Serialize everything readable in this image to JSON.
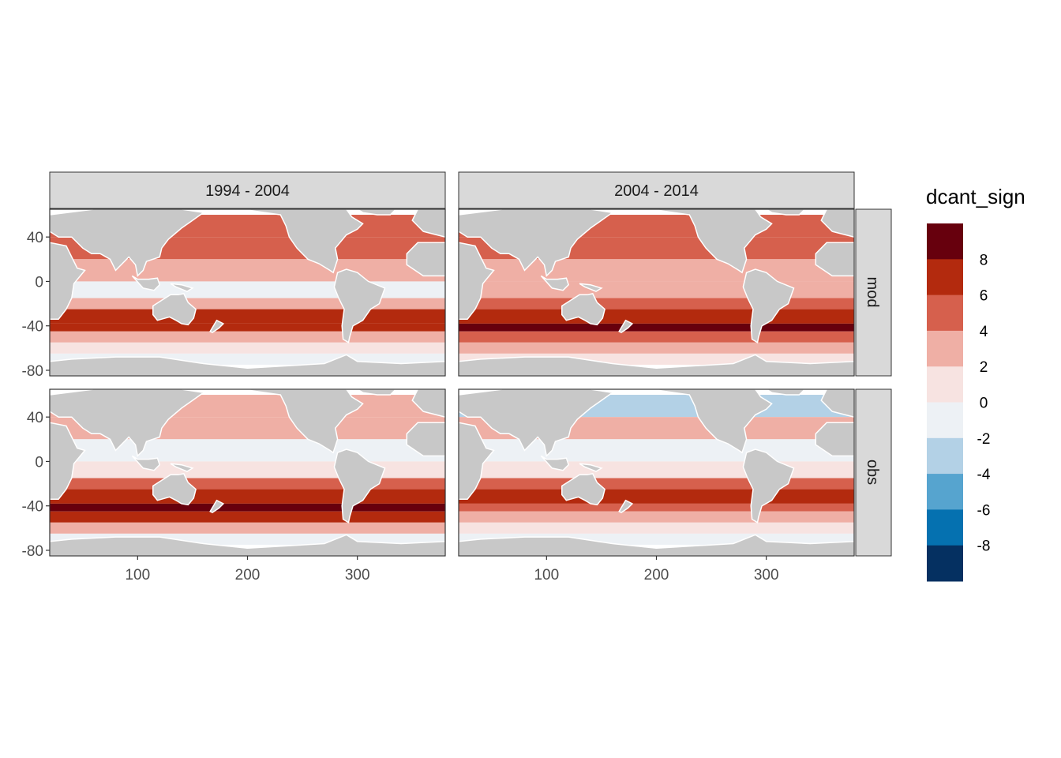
{
  "chart_data": {
    "type": "heatmap",
    "legend_title": "dcant_sign",
    "columns": [
      "1994 - 2004",
      "2004 - 2014"
    ],
    "rows": [
      "mod",
      "obs"
    ],
    "x_ticks": [
      100,
      200,
      300
    ],
    "y_ticks": [
      40,
      0,
      -40,
      -80
    ],
    "xlim": [
      20,
      380
    ],
    "ylim": [
      -85,
      65
    ],
    "legend_breaks": [
      "8",
      "6",
      "4",
      "2",
      "0",
      "-2",
      "-4",
      "-6",
      "-8"
    ],
    "legend_colors": [
      "#67000D",
      "#B32A0E",
      "#D6604D",
      "#EFAFA5",
      "#F7E3E1",
      "#EDF1F5",
      "#B3D1E6",
      "#56A4CF",
      "#0571B0",
      "#053061"
    ],
    "land_color": "#C8C8C8",
    "nodata_color": "#FFFFFF",
    "panels": [
      {
        "column": "1994 - 2004",
        "row": "mod",
        "bands": [
          {
            "lat": [
              40,
              60
            ],
            "value": 4
          },
          {
            "lat": [
              20,
              40
            ],
            "value": 5
          },
          {
            "lat": [
              0,
              20
            ],
            "value": 2
          },
          {
            "lat": [
              -15,
              0
            ],
            "value": -1
          },
          {
            "lat": [
              -25,
              -15
            ],
            "value": 3
          },
          {
            "lat": [
              -38,
              -25
            ],
            "value": 6
          },
          {
            "lat": [
              -45,
              -38
            ],
            "value": 7
          },
          {
            "lat": [
              -55,
              -45
            ],
            "value": 3
          },
          {
            "lat": [
              -65,
              -55
            ],
            "value": 1
          },
          {
            "lat": [
              -75,
              -65
            ],
            "value": -1
          }
        ]
      },
      {
        "column": "2004 - 2014",
        "row": "mod",
        "bands": [
          {
            "lat": [
              40,
              60
            ],
            "value": 4
          },
          {
            "lat": [
              20,
              40
            ],
            "value": 4
          },
          {
            "lat": [
              0,
              20
            ],
            "value": 2
          },
          {
            "lat": [
              -15,
              0
            ],
            "value": 3
          },
          {
            "lat": [
              -25,
              -15
            ],
            "value": 5
          },
          {
            "lat": [
              -38,
              -25
            ],
            "value": 7
          },
          {
            "lat": [
              -45,
              -38
            ],
            "value": 9
          },
          {
            "lat": [
              -55,
              -45
            ],
            "value": 5
          },
          {
            "lat": [
              -65,
              -55
            ],
            "value": 3
          },
          {
            "lat": [
              -75,
              -65
            ],
            "value": 1
          }
        ]
      },
      {
        "column": "1994 - 2004",
        "row": "obs",
        "bands": [
          {
            "lat": [
              40,
              60
            ],
            "value": 3
          },
          {
            "lat": [
              20,
              40
            ],
            "value": 3
          },
          {
            "lat": [
              0,
              20
            ],
            "value": -1
          },
          {
            "lat": [
              -15,
              0
            ],
            "value": 1
          },
          {
            "lat": [
              -25,
              -15
            ],
            "value": 5
          },
          {
            "lat": [
              -38,
              -25
            ],
            "value": 7
          },
          {
            "lat": [
              -45,
              -38
            ],
            "value": 9
          },
          {
            "lat": [
              -55,
              -45
            ],
            "value": 6
          },
          {
            "lat": [
              -65,
              -55
            ],
            "value": 3
          },
          {
            "lat": [
              -75,
              -65
            ],
            "value": -1
          }
        ]
      },
      {
        "column": "2004 - 2014",
        "row": "obs",
        "bands": [
          {
            "lat": [
              40,
              60
            ],
            "value": -3
          },
          {
            "lat": [
              20,
              40
            ],
            "value": 2
          },
          {
            "lat": [
              0,
              20
            ],
            "value": -1
          },
          {
            "lat": [
              -15,
              0
            ],
            "value": 1
          },
          {
            "lat": [
              -25,
              -15
            ],
            "value": 4
          },
          {
            "lat": [
              -38,
              -25
            ],
            "value": 7
          },
          {
            "lat": [
              -45,
              -38
            ],
            "value": 5
          },
          {
            "lat": [
              -55,
              -45
            ],
            "value": 3
          },
          {
            "lat": [
              -65,
              -55
            ],
            "value": 1
          },
          {
            "lat": [
              -75,
              -65
            ],
            "value": -1
          }
        ]
      }
    ]
  }
}
